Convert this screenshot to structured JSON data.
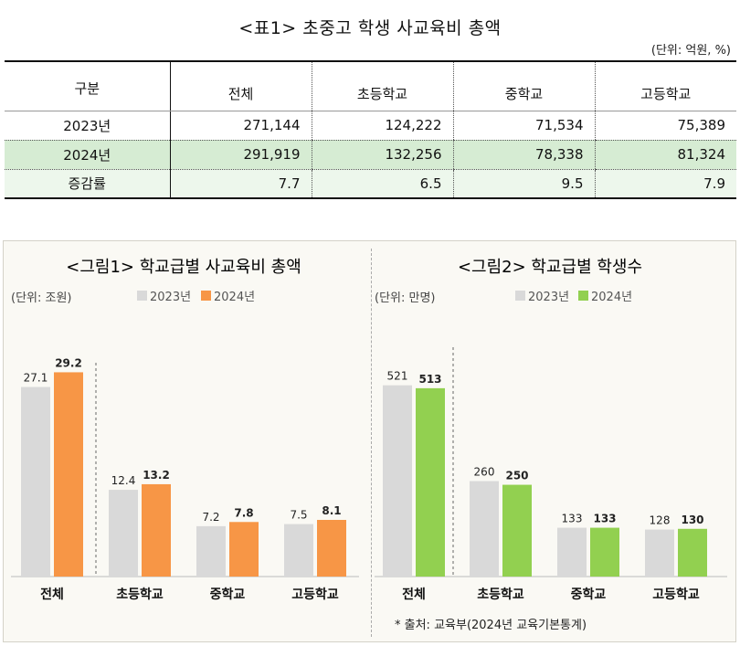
{
  "table": {
    "title": "<표1> 초중고 학생 사교육비 총액",
    "unit": "(단위: 억원, %)",
    "header": {
      "category": "구분",
      "columns": [
        "전체",
        "초등학교",
        "중학교",
        "고등학교"
      ]
    },
    "rows": [
      {
        "label": "2023년",
        "values": [
          "271,144",
          "124,222",
          "71,534",
          "75,389"
        ]
      },
      {
        "label": "2024년",
        "values": [
          "291,919",
          "132,256",
          "78,338",
          "81,324"
        ]
      },
      {
        "label": "증감률",
        "values": [
          "7.7",
          "6.5",
          "9.5",
          "7.9"
        ]
      }
    ]
  },
  "colors": {
    "gray": "#d9d9d9",
    "orange": "#f79646",
    "green": "#92d050",
    "highlight_row": "#d6ecd3"
  },
  "chart_data": [
    {
      "type": "bar",
      "title": "<그림1> 학교급별 사교육비 총액",
      "unit": "(단위: 조원)",
      "categories": [
        "전체",
        "초등학교",
        "중학교",
        "고등학교"
      ],
      "series": [
        {
          "name": "2023년",
          "values": [
            27.1,
            12.4,
            7.2,
            7.5
          ],
          "labels": [
            "27.1",
            "12.4",
            "7.2",
            "7.5"
          ]
        },
        {
          "name": "2024년",
          "values": [
            29.2,
            13.2,
            7.8,
            8.1
          ],
          "labels": [
            "29.2",
            "13.2",
            "7.8",
            "8.1"
          ]
        }
      ],
      "ylim": [
        0,
        32
      ]
    },
    {
      "type": "bar",
      "title": "<그림2> 학교급별 학생수",
      "unit": "(단위: 만명)",
      "categories": [
        "전체",
        "초등학교",
        "중학교",
        "고등학교"
      ],
      "series": [
        {
          "name": "2023년",
          "values": [
            521,
            260,
            133,
            128
          ],
          "labels": [
            "521",
            "260",
            "133",
            "128"
          ]
        },
        {
          "name": "2024년",
          "values": [
            513,
            250,
            133,
            130
          ],
          "labels": [
            "513",
            "250",
            "133",
            "130"
          ]
        }
      ],
      "ylim": [
        0,
        560
      ]
    }
  ],
  "source": "* 출처: 교육부(2024년 교육기본통계)"
}
